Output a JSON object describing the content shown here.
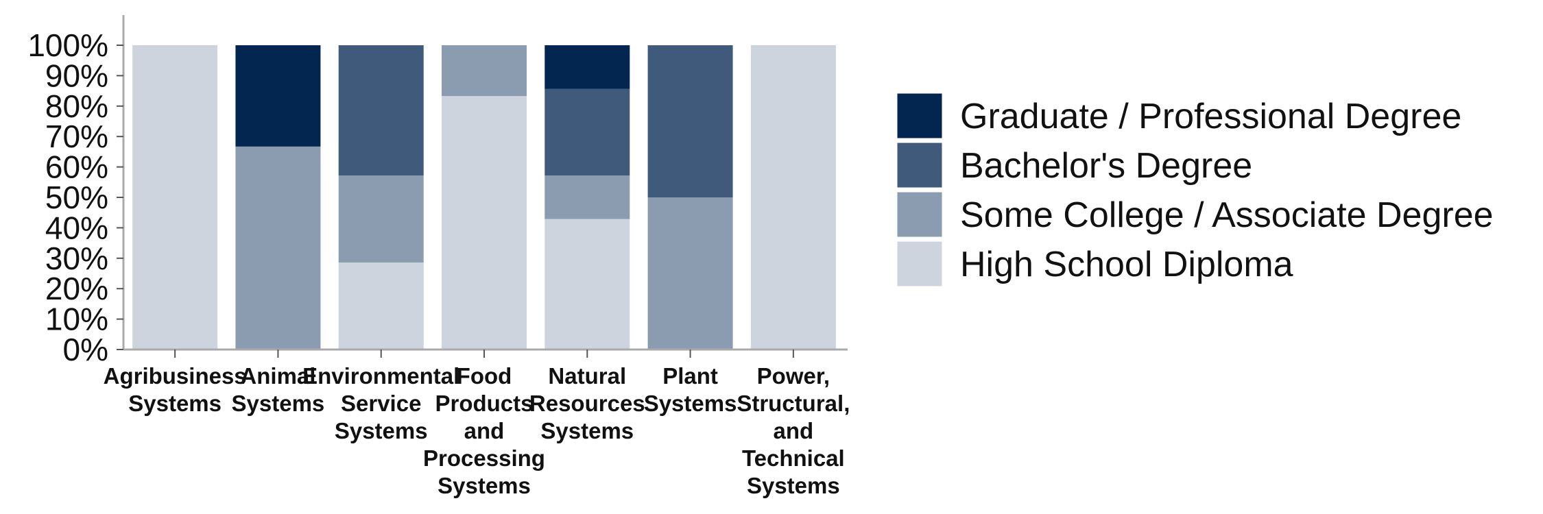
{
  "chart_data": {
    "type": "bar",
    "stacked": true,
    "percent": true,
    "categories": [
      "Agribusiness Systems",
      "Animal Systems",
      "Environmental Service Systems",
      "Food Products and Processing Systems",
      "Natural Resources Systems",
      "Plant Systems",
      "Power, Structural, and Technical Systems"
    ],
    "series": [
      {
        "name": "High School Diploma",
        "color": "#cdd4dd",
        "values": [
          100,
          0,
          28.6,
          83.3,
          42.9,
          0,
          100
        ]
      },
      {
        "name": "Some College / Associate Degree",
        "color": "#8b9cb0",
        "values": [
          0,
          66.7,
          28.6,
          16.7,
          14.3,
          50,
          0
        ]
      },
      {
        "name": "Bachelor's Degree",
        "color": "#3f5a7b",
        "values": [
          0,
          0,
          42.8,
          0,
          28.5,
          50,
          0
        ]
      },
      {
        "name": "Graduate / Professional Degree",
        "color": "#02264f",
        "values": [
          0,
          33.3,
          0,
          0,
          14.3,
          0,
          0
        ]
      }
    ],
    "legend_order": [
      "Graduate / Professional Degree",
      "Bachelor's Degree",
      "Some College / Associate Degree",
      "High School Diploma"
    ],
    "ylim": [
      0,
      100
    ],
    "yticks": [
      "0%",
      "10%",
      "20%",
      "30%",
      "40%",
      "50%",
      "60%",
      "70%",
      "80%",
      "90%",
      "100%"
    ],
    "grid": false,
    "legend_position": "right"
  }
}
